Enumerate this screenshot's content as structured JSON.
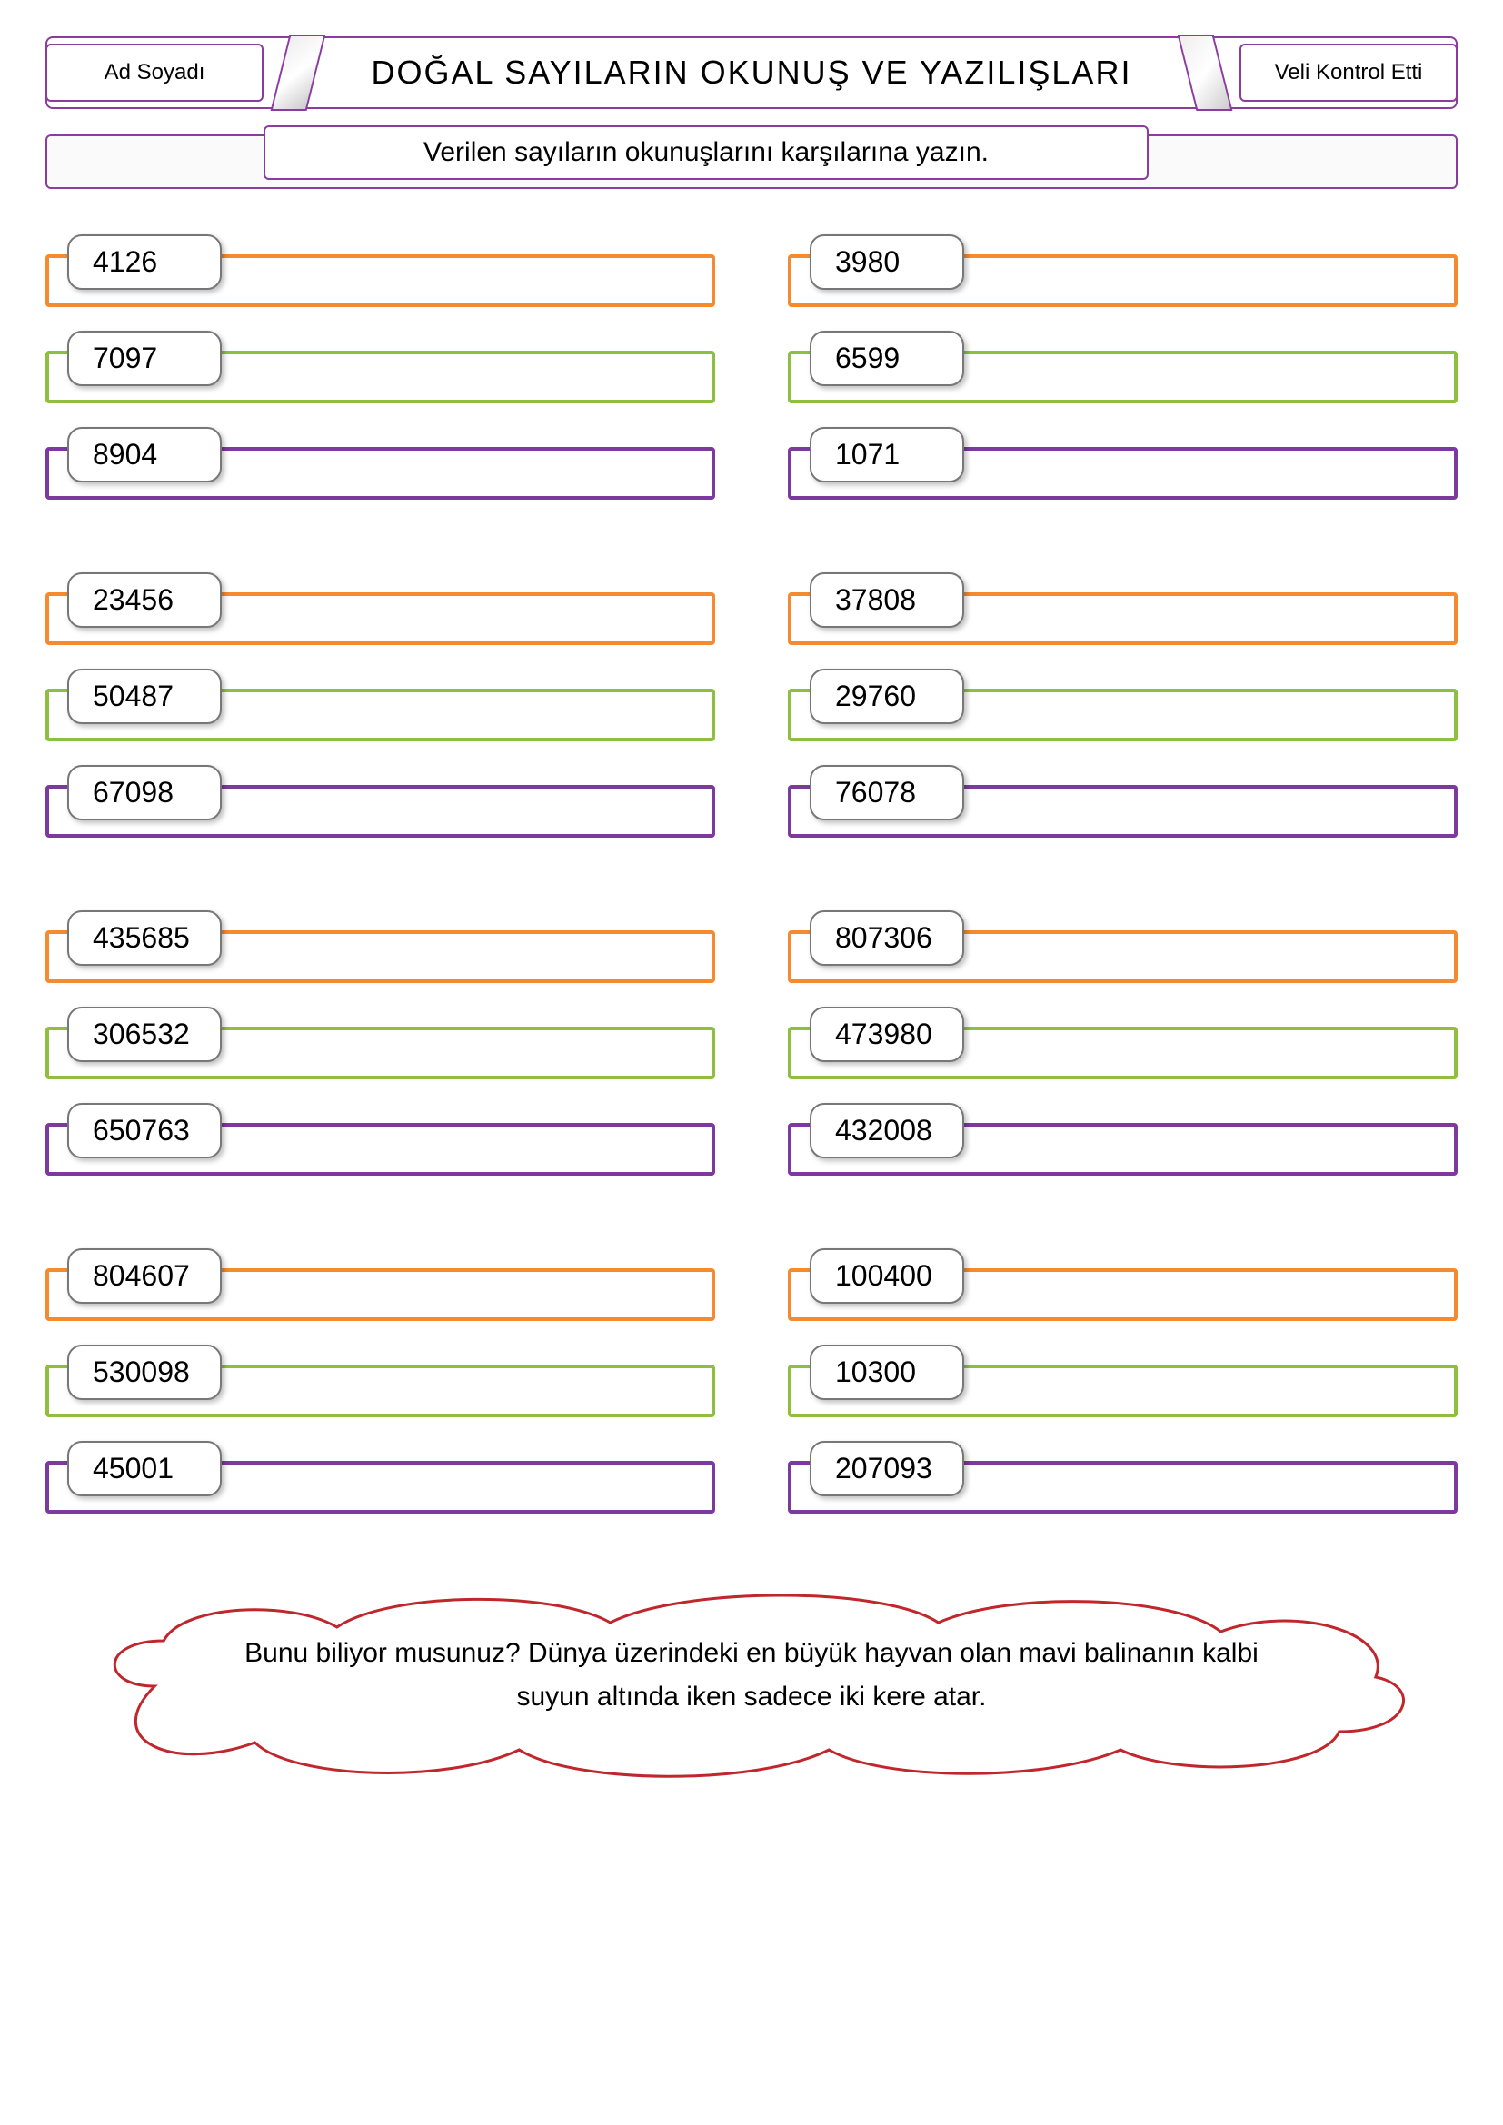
{
  "header": {
    "left_label": "Ad Soyadı",
    "title": "DOĞAL SAYILARIN OKUNUŞ VE YAZILIŞLARI",
    "right_label": "Veli Kontrol Etti"
  },
  "instruction": "Verilen sayıların okunuşlarını karşılarına yazın.",
  "colors": {
    "orange": "#f58b2e",
    "green": "#8fbf3f",
    "purple": "#7c3a9e",
    "cloud_stroke": "#c0272d"
  },
  "groups": [
    {
      "rows": [
        {
          "left": "4126",
          "right": "3980",
          "color": "orange"
        },
        {
          "left": "7097",
          "right": "6599",
          "color": "green"
        },
        {
          "left": "8904",
          "right": "1071",
          "color": "purple"
        }
      ]
    },
    {
      "rows": [
        {
          "left": "23456",
          "right": "37808",
          "color": "orange"
        },
        {
          "left": "50487",
          "right": "29760",
          "color": "green"
        },
        {
          "left": "67098",
          "right": "76078",
          "color": "purple"
        }
      ]
    },
    {
      "rows": [
        {
          "left": "435685",
          "right": "807306",
          "color": "orange"
        },
        {
          "left": "306532",
          "right": "473980",
          "color": "green"
        },
        {
          "left": "650763",
          "right": "432008",
          "color": "purple"
        }
      ]
    },
    {
      "rows": [
        {
          "left": "804607",
          "right": "100400",
          "color": "orange"
        },
        {
          "left": "530098",
          "right": "10300",
          "color": "green"
        },
        {
          "left": "45001",
          "right": "207093",
          "color": "purple"
        }
      ]
    }
  ],
  "fact": "Bunu biliyor musunuz? Dünya üzerindeki en büyük hayvan olan mavi balinanın kalbi suyun altında iken sadece iki kere atar."
}
